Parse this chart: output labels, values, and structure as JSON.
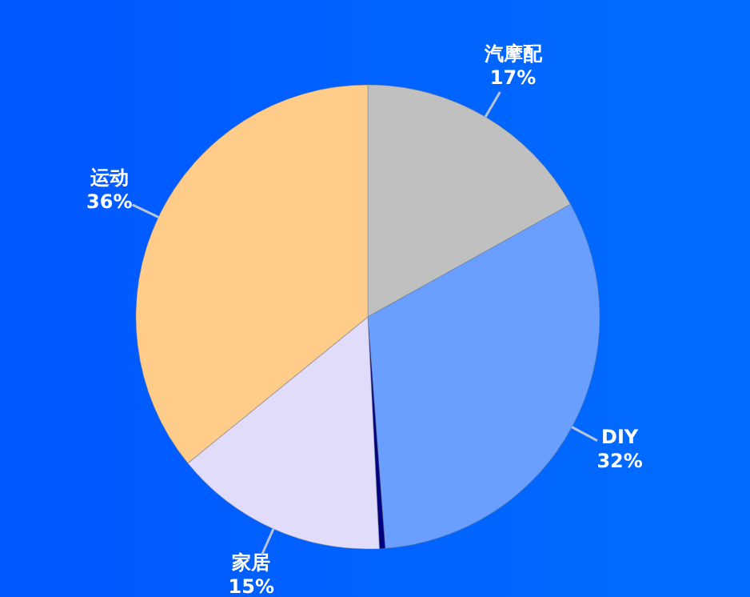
{
  "chart_data": {
    "type": "pie",
    "categories": [
      "汽摩配",
      "DIY",
      null,
      "家居",
      "运动"
    ],
    "values": [
      17,
      32,
      0.4,
      15,
      36
    ],
    "colors": [
      "#c0c0c0",
      "#6a9eff",
      "#000080",
      "#e2dcfb",
      "#ffcc8a"
    ],
    "value_labels": [
      "17%",
      "32%",
      null,
      "15%",
      "36%"
    ],
    "legend": false
  }
}
